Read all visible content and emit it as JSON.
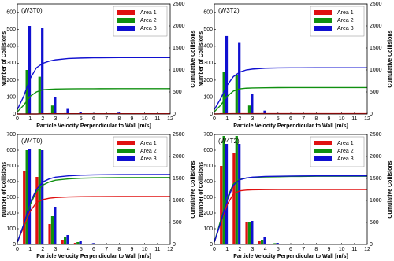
{
  "chart_data": [
    {
      "type": "bar",
      "title": "(W3T0)",
      "xlabel": "Particle Velocity Perpendicular to Wall [m/s]",
      "ylabel": "Number of Collisions",
      "y2label": "Cumulative Collisions",
      "x": [
        0.75,
        1.75,
        2.75,
        3.75,
        4.75,
        5.75,
        6.75,
        7.75
      ],
      "series": [
        {
          "name": "Area 1",
          "color": "#e01010",
          "values": [
            0,
            0,
            5,
            0,
            0,
            0,
            0,
            0
          ]
        },
        {
          "name": "Area 2",
          "color": "#109010",
          "values": [
            260,
            220,
            50,
            5,
            2,
            0,
            0,
            0
          ]
        },
        {
          "name": "Area 3",
          "color": "#1010d0",
          "values": [
            520,
            510,
            100,
            30,
            10,
            5,
            3,
            8
          ]
        }
      ],
      "cumulative_x": [
        0,
        0.5,
        1,
        1.5,
        2,
        2.5,
        3,
        4,
        5,
        6,
        8,
        12
      ],
      "cumulative": [
        {
          "color": "#e01010",
          "axis": "y2",
          "values": [
            0,
            0,
            0,
            0,
            5,
            5,
            5,
            5,
            5,
            5,
            5,
            5
          ]
        },
        {
          "color": "#109010",
          "axis": "y2",
          "values": [
            50,
            200,
            400,
            500,
            550,
            560,
            565,
            570,
            572,
            573,
            575,
            575
          ]
        },
        {
          "color": "#1010d0",
          "axis": "y2",
          "values": [
            100,
            400,
            800,
            1050,
            1150,
            1200,
            1230,
            1260,
            1270,
            1275,
            1280,
            1280
          ]
        }
      ],
      "xlim": [
        0,
        12
      ],
      "xticks": [
        0,
        1,
        2,
        3,
        4,
        5,
        6,
        7,
        8,
        9,
        10,
        11,
        12
      ],
      "ylim": [
        0,
        650
      ],
      "yticks": [
        0,
        100,
        200,
        300,
        400,
        500,
        600
      ],
      "y2lim": [
        0,
        2500
      ],
      "y2ticks": [
        0,
        500,
        1000,
        1500,
        2000,
        2500
      ],
      "legend": "upper right"
    },
    {
      "type": "bar",
      "title": "(W3T2)",
      "xlabel": "Particle Velocity Perpendicular to Wall [m/s]",
      "ylabel": "Number of Collisions",
      "y2label": "Cumulative Collisions",
      "x": [
        0.75,
        1.75,
        2.75,
        3.75,
        4.75,
        5.75,
        6.75,
        7.75
      ],
      "series": [
        {
          "name": "Area 1",
          "color": "#e01010",
          "values": [
            5,
            3,
            0,
            0,
            0,
            0,
            0,
            0
          ]
        },
        {
          "name": "Area 2",
          "color": "#109010",
          "values": [
            250,
            230,
            50,
            5,
            0,
            0,
            0,
            0
          ]
        },
        {
          "name": "Area 3",
          "color": "#1010d0",
          "values": [
            460,
            420,
            120,
            20,
            5,
            0,
            0,
            0
          ]
        }
      ],
      "cumulative_x": [
        0,
        0.5,
        1,
        1.5,
        2,
        2.5,
        3,
        4,
        5,
        6,
        8,
        12
      ],
      "cumulative": [
        {
          "color": "#e01010",
          "axis": "y2",
          "values": [
            0,
            3,
            5,
            8,
            8,
            8,
            8,
            8,
            8,
            8,
            8,
            8
          ]
        },
        {
          "color": "#109010",
          "axis": "y2",
          "values": [
            50,
            200,
            400,
            520,
            570,
            585,
            590,
            595,
            598,
            600,
            600,
            600
          ]
        },
        {
          "color": "#1010d0",
          "axis": "y2",
          "values": [
            100,
            350,
            650,
            850,
            950,
            1000,
            1020,
            1040,
            1045,
            1048,
            1050,
            1050
          ]
        }
      ],
      "xlim": [
        0,
        12
      ],
      "xticks": [
        0,
        1,
        2,
        3,
        4,
        5,
        6,
        7,
        8,
        9,
        10,
        11,
        12
      ],
      "ylim": [
        0,
        650
      ],
      "yticks": [
        0,
        100,
        200,
        300,
        400,
        500,
        600
      ],
      "y2lim": [
        0,
        2500
      ],
      "y2ticks": [
        0,
        500,
        1000,
        1500,
        2000,
        2500
      ],
      "legend": "upper right"
    },
    {
      "type": "bar",
      "title": "(W4T0)",
      "xlabel": "Particle Velocity Perpendicular to Wall [m/s]",
      "ylabel": "Number of Collisions",
      "y2label": "Cumulative Collisions",
      "x": [
        0.75,
        1.75,
        2.75,
        3.75,
        4.75,
        5.75,
        6.75,
        7.75
      ],
      "series": [
        {
          "name": "Area 1",
          "color": "#e01010",
          "values": [
            470,
            430,
            130,
            30,
            10,
            5,
            2,
            0
          ]
        },
        {
          "name": "Area 2",
          "color": "#109010",
          "values": [
            600,
            610,
            180,
            50,
            15,
            5,
            2,
            0
          ]
        },
        {
          "name": "Area 3",
          "color": "#1010d0",
          "values": [
            610,
            600,
            240,
            60,
            20,
            8,
            3,
            0
          ]
        }
      ],
      "cumulative_x": [
        0,
        0.5,
        1,
        1.5,
        2,
        2.5,
        3,
        4,
        5,
        6,
        8,
        12
      ],
      "cumulative": [
        {
          "color": "#e01010",
          "axis": "y2",
          "values": [
            50,
            400,
            750,
            950,
            1020,
            1050,
            1065,
            1080,
            1085,
            1088,
            1090,
            1090
          ]
        },
        {
          "color": "#109010",
          "axis": "y2",
          "values": [
            50,
            450,
            900,
            1200,
            1350,
            1420,
            1460,
            1490,
            1505,
            1512,
            1518,
            1520
          ]
        },
        {
          "color": "#1010d0",
          "axis": "y2",
          "values": [
            50,
            450,
            950,
            1250,
            1420,
            1490,
            1530,
            1560,
            1575,
            1582,
            1588,
            1590
          ]
        }
      ],
      "xlim": [
        0,
        12
      ],
      "xticks": [
        0,
        1,
        2,
        3,
        4,
        5,
        6,
        7,
        8,
        9,
        10,
        11,
        12
      ],
      "ylim": [
        0,
        700
      ],
      "yticks": [
        0,
        100,
        200,
        300,
        400,
        500,
        600,
        700
      ],
      "y2lim": [
        0,
        2500
      ],
      "y2ticks": [
        0,
        500,
        1000,
        1500,
        2000,
        2500
      ],
      "legend": "upper right"
    },
    {
      "type": "bar",
      "title": "(W4T2)",
      "xlabel": "Particle Velocity Perpendicular to Wall [m/s]",
      "ylabel": "Number of Collisions",
      "y2label": "Cumulative Collisions",
      "x": [
        0.75,
        1.75,
        2.75,
        3.75,
        4.75,
        5.75,
        6.75,
        7.75
      ],
      "series": [
        {
          "name": "Area 1",
          "color": "#e01010",
          "values": [
            500,
            580,
            140,
            20,
            5,
            2,
            0,
            0
          ]
        },
        {
          "name": "Area 2",
          "color": "#109010",
          "values": [
            690,
            690,
            140,
            30,
            8,
            3,
            0,
            0
          ]
        },
        {
          "name": "Area 3",
          "color": "#1010d0",
          "values": [
            640,
            640,
            150,
            50,
            10,
            4,
            0,
            0
          ]
        }
      ],
      "cumulative_x": [
        0,
        0.5,
        1,
        1.5,
        2,
        2.5,
        3,
        4,
        5,
        6,
        8,
        12
      ],
      "cumulative": [
        {
          "color": "#e01010",
          "axis": "y2",
          "values": [
            50,
            500,
            900,
            1150,
            1220,
            1235,
            1242,
            1246,
            1248,
            1250,
            1250,
            1250
          ]
        },
        {
          "color": "#109010",
          "axis": "y2",
          "values": [
            50,
            550,
            1050,
            1380,
            1480,
            1510,
            1525,
            1535,
            1540,
            1545,
            1550,
            1550
          ]
        },
        {
          "color": "#1010d0",
          "axis": "y2",
          "values": [
            50,
            500,
            1000,
            1350,
            1470,
            1510,
            1530,
            1545,
            1550,
            1555,
            1560,
            1560
          ]
        }
      ],
      "xlim": [
        0,
        12
      ],
      "xticks": [
        0,
        1,
        2,
        3,
        4,
        5,
        6,
        7,
        8,
        9,
        10,
        11,
        12
      ],
      "ylim": [
        0,
        700
      ],
      "yticks": [
        0,
        100,
        200,
        300,
        400,
        500,
        600,
        700
      ],
      "y2lim": [
        0,
        2500
      ],
      "y2ticks": [
        0,
        500,
        1000,
        1500,
        2000,
        2500
      ],
      "legend": "upper right"
    }
  ]
}
